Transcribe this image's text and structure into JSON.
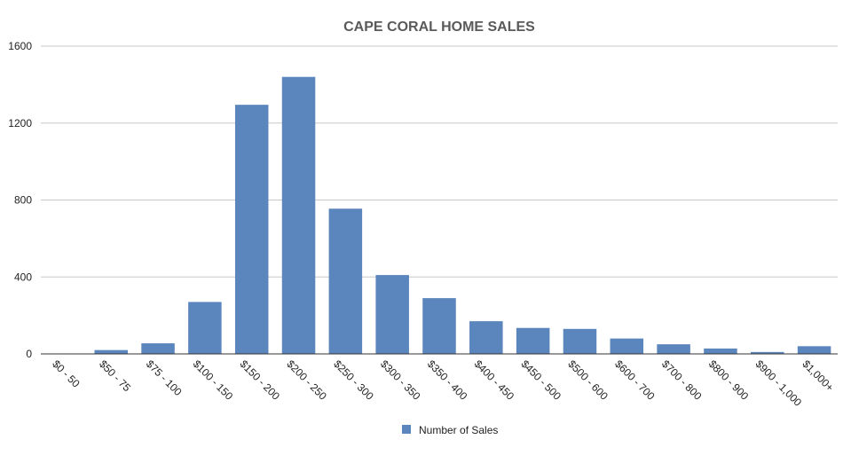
{
  "chart_data": {
    "type": "bar",
    "title": "CAPE CORAL HOME SALES",
    "xlabel": "",
    "ylabel": "",
    "categories": [
      "$0 - 50",
      "$50 - 75",
      "$75 - 100",
      "$100 - 150",
      "$150 - 200",
      "$200 - 250",
      "$250 - 300",
      "$300 - 350",
      "$350 - 400",
      "$400 - 450",
      "$450 - 500",
      "$500 - 600",
      "$600 - 700",
      "$700 - 800",
      "$800 - 900",
      "$900 - 1,000",
      "$1,000+"
    ],
    "series": [
      {
        "name": "Number of Sales",
        "color": "#5b85bd",
        "values": [
          0,
          20,
          55,
          270,
          1295,
          1440,
          755,
          410,
          290,
          170,
          135,
          130,
          80,
          50,
          28,
          10,
          40
        ]
      }
    ],
    "ylim": [
      0,
      1600
    ],
    "yticks": [
      0,
      400,
      800,
      1200,
      1600
    ],
    "grid": true,
    "legend": "bottom"
  }
}
